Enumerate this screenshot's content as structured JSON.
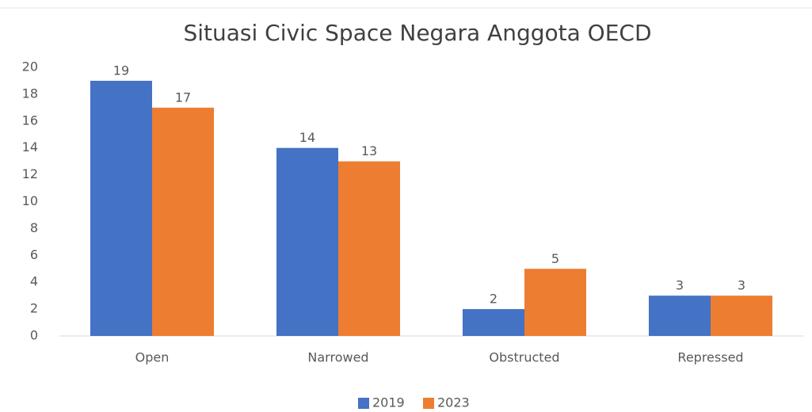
{
  "chart_data": {
    "type": "bar",
    "title": "Situasi Civic Space Negara Anggota OECD",
    "categories": [
      "Open",
      "Narrowed",
      "Obstructed",
      "Repressed"
    ],
    "series": [
      {
        "name": "2019",
        "color": "#4472c4",
        "values": [
          19,
          14,
          2,
          3
        ]
      },
      {
        "name": "2023",
        "color": "#ed7d31",
        "values": [
          17,
          13,
          5,
          3
        ]
      }
    ],
    "ylim": [
      0,
      20
    ],
    "yticks": [
      0,
      2,
      4,
      6,
      8,
      10,
      12,
      14,
      16,
      18,
      20
    ],
    "grid": false,
    "legend": "bottom"
  }
}
